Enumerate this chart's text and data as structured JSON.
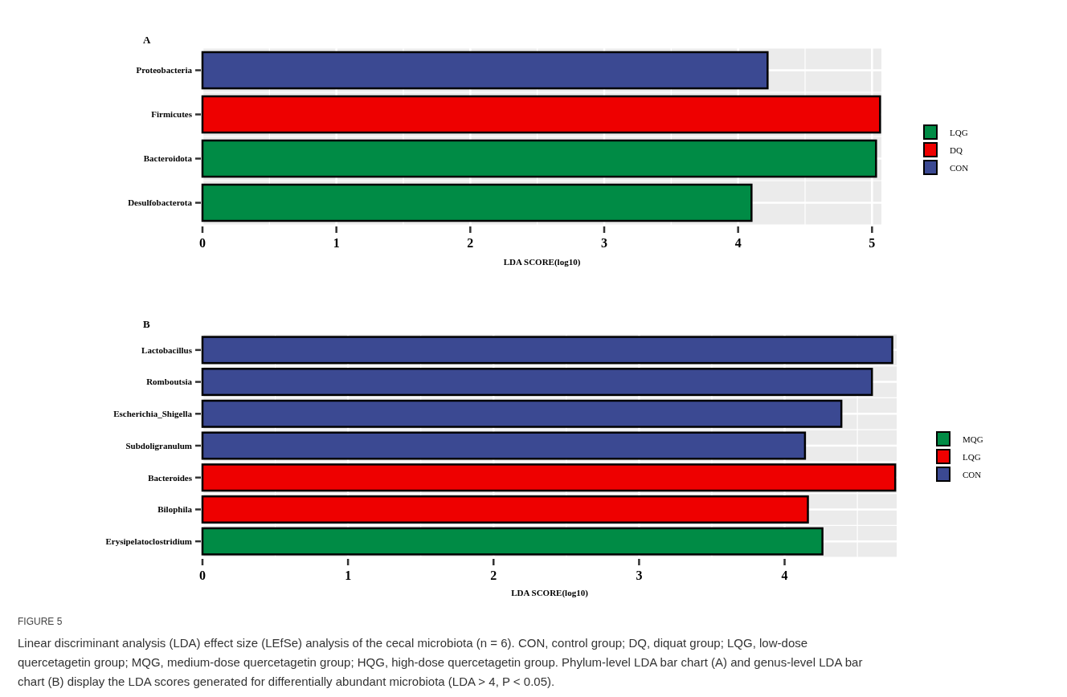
{
  "chart_data": [
    {
      "type": "bar",
      "title": "A",
      "orientation": "horizontal",
      "categories": [
        "Proteobacteria",
        "Firmicutes",
        "Bacteroidota",
        "Desulfobacterota"
      ],
      "series": [
        {
          "name": "LQG",
          "color": "#008b45",
          "values": [
            null,
            null,
            5.03,
            4.1
          ]
        },
        {
          "name": "DQ",
          "color": "#ee0000",
          "values": [
            null,
            5.06,
            null,
            null
          ]
        },
        {
          "name": "CON",
          "color": "#3b4992",
          "values": [
            4.22,
            null,
            null,
            null
          ]
        }
      ],
      "xlabel": "LDA SCORE(log10)",
      "xlim": [
        0,
        5.07
      ],
      "xticks": [
        0,
        1,
        2,
        3,
        4,
        5
      ],
      "grid": true,
      "legend": "right"
    },
    {
      "type": "bar",
      "title": "B",
      "orientation": "horizontal",
      "categories": [
        "Lactobacillus",
        "Romboutsia",
        "Escherichia_Shigella",
        "Subdoligranulum",
        "Bacteroides",
        "Bilophila",
        "Erysipelatoclostridium"
      ],
      "series": [
        {
          "name": "MQG",
          "color": "#008b45",
          "values": [
            null,
            null,
            null,
            null,
            null,
            null,
            4.26
          ]
        },
        {
          "name": "LQG",
          "color": "#ee0000",
          "values": [
            null,
            null,
            null,
            null,
            4.76,
            4.16,
            null
          ]
        },
        {
          "name": "CON",
          "color": "#3b4992",
          "values": [
            4.74,
            4.6,
            4.39,
            4.14,
            null,
            null,
            null
          ]
        }
      ],
      "xlabel": "LDA SCORE(log10)",
      "xlim": [
        0,
        4.77
      ],
      "xticks": [
        0,
        1,
        2,
        3,
        4
      ],
      "grid": true,
      "legend": "right",
      "annotations": [
        "FIGURE 5",
        "Linear discriminant analysis (LDA) effect size (LEfSe) analysis of the cecal microbiota (n = 6). CON, control group; DQ, diquat group; LQG, low-dose quercetagetin group; MQG, medium-dose quercetagetin group; HQG, high-dose quercetagetin group. Phylum-level LDA bar chart (A) and genus-level LDA bar chart (B) display the LDA scores generated for differentially abundant microbiota (LDA > 4, P < 0.05)."
      ]
    }
  ]
}
